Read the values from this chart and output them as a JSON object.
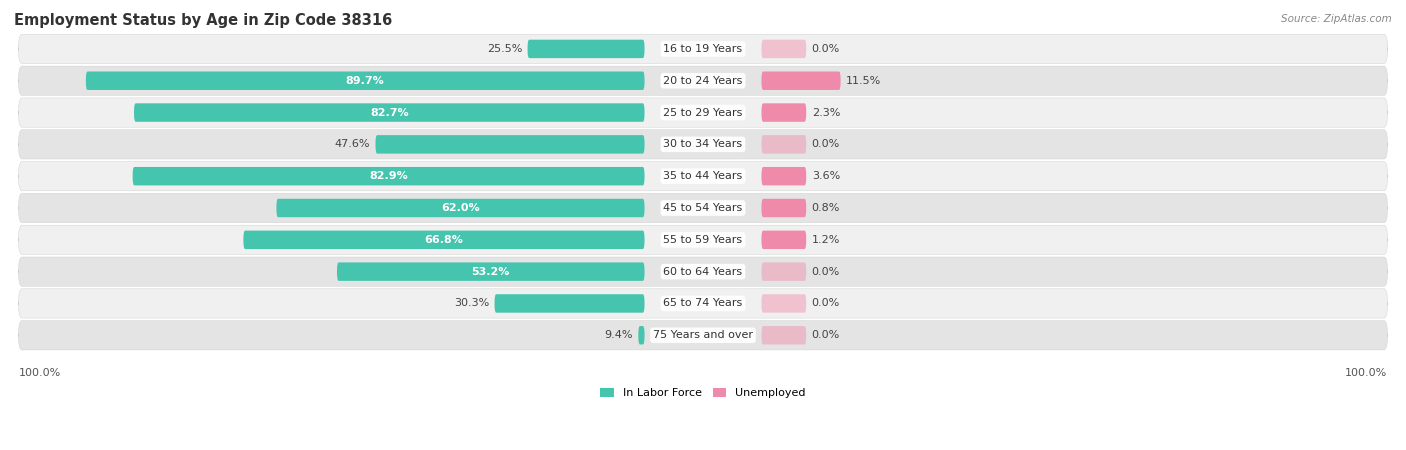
{
  "title": "Employment Status by Age in Zip Code 38316",
  "source": "Source: ZipAtlas.com",
  "categories": [
    "16 to 19 Years",
    "20 to 24 Years",
    "25 to 29 Years",
    "30 to 34 Years",
    "35 to 44 Years",
    "45 to 54 Years",
    "55 to 59 Years",
    "60 to 64 Years",
    "65 to 74 Years",
    "75 Years and over"
  ],
  "labor_force": [
    25.5,
    89.7,
    82.7,
    47.6,
    82.9,
    62.0,
    66.8,
    53.2,
    30.3,
    9.4
  ],
  "unemployed": [
    0.0,
    11.5,
    2.3,
    0.0,
    3.6,
    0.8,
    1.2,
    0.0,
    0.0,
    0.0
  ],
  "labor_force_color": "#45c4ae",
  "unemployed_color": "#f08aaa",
  "row_bg_odd": "#f5f5f5",
  "row_bg_even": "#e8e8e8",
  "title_fontsize": 10.5,
  "label_fontsize": 8.0,
  "source_fontsize": 7.5,
  "tick_fontsize": 8.0,
  "max_value": 100.0,
  "legend_labels": [
    "In Labor Force",
    "Unemployed"
  ],
  "min_unemp_bar_width": 6.5
}
